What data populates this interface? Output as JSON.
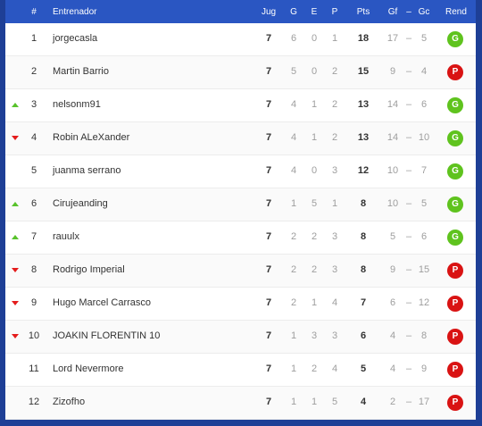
{
  "columns": {
    "pos": "#",
    "coach": "Entrenador",
    "played": "Jug",
    "won": "G",
    "drawn": "E",
    "lost": "P",
    "points": "Pts",
    "goals_for": "Gf",
    "separator": "–",
    "goals_against": "Gc",
    "form": "Rend"
  },
  "colors": {
    "header_bg": "#2a56c2",
    "page_bg": "#1e3f96",
    "win_badge": "#5fc31e",
    "loss_badge": "#d91313",
    "trend_up": "#58c22b",
    "trend_down": "#e41c1c"
  },
  "rows": [
    {
      "trend": "none",
      "pos": "1",
      "name": "jorgecasla",
      "jug": "7",
      "g": "6",
      "e": "0",
      "p": "1",
      "pts": "18",
      "gf": "17",
      "dash": "–",
      "gc": "5",
      "rend": "G",
      "rend_type": "win"
    },
    {
      "trend": "none",
      "pos": "2",
      "name": "Martin Barrio",
      "jug": "7",
      "g": "5",
      "e": "0",
      "p": "2",
      "pts": "15",
      "gf": "9",
      "dash": "–",
      "gc": "4",
      "rend": "P",
      "rend_type": "loss"
    },
    {
      "trend": "up",
      "pos": "3",
      "name": "nelsonm91",
      "jug": "7",
      "g": "4",
      "e": "1",
      "p": "2",
      "pts": "13",
      "gf": "14",
      "dash": "–",
      "gc": "6",
      "rend": "G",
      "rend_type": "win"
    },
    {
      "trend": "down",
      "pos": "4",
      "name": "Robin ALeXander",
      "jug": "7",
      "g": "4",
      "e": "1",
      "p": "2",
      "pts": "13",
      "gf": "14",
      "dash": "–",
      "gc": "10",
      "rend": "G",
      "rend_type": "win"
    },
    {
      "trend": "none",
      "pos": "5",
      "name": "juanma serrano",
      "jug": "7",
      "g": "4",
      "e": "0",
      "p": "3",
      "pts": "12",
      "gf": "10",
      "dash": "–",
      "gc": "7",
      "rend": "G",
      "rend_type": "win"
    },
    {
      "trend": "up",
      "pos": "6",
      "name": "Cirujeanding",
      "jug": "7",
      "g": "1",
      "e": "5",
      "p": "1",
      "pts": "8",
      "gf": "10",
      "dash": "–",
      "gc": "5",
      "rend": "G",
      "rend_type": "win"
    },
    {
      "trend": "up",
      "pos": "7",
      "name": "rauulx",
      "jug": "7",
      "g": "2",
      "e": "2",
      "p": "3",
      "pts": "8",
      "gf": "5",
      "dash": "–",
      "gc": "6",
      "rend": "G",
      "rend_type": "win"
    },
    {
      "trend": "down",
      "pos": "8",
      "name": "Rodrigo Imperial",
      "jug": "7",
      "g": "2",
      "e": "2",
      "p": "3",
      "pts": "8",
      "gf": "9",
      "dash": "–",
      "gc": "15",
      "rend": "P",
      "rend_type": "loss"
    },
    {
      "trend": "down",
      "pos": "9",
      "name": "Hugo Marcel Carrasco",
      "jug": "7",
      "g": "2",
      "e": "1",
      "p": "4",
      "pts": "7",
      "gf": "6",
      "dash": "–",
      "gc": "12",
      "rend": "P",
      "rend_type": "loss"
    },
    {
      "trend": "down",
      "pos": "10",
      "name": "JOAKIN FLORENTIN 10",
      "jug": "7",
      "g": "1",
      "e": "3",
      "p": "3",
      "pts": "6",
      "gf": "4",
      "dash": "–",
      "gc": "8",
      "rend": "P",
      "rend_type": "loss"
    },
    {
      "trend": "none",
      "pos": "11",
      "name": "Lord Nevermore",
      "jug": "7",
      "g": "1",
      "e": "2",
      "p": "4",
      "pts": "5",
      "gf": "4",
      "dash": "–",
      "gc": "9",
      "rend": "P",
      "rend_type": "loss"
    },
    {
      "trend": "none",
      "pos": "12",
      "name": "Zizofho",
      "jug": "7",
      "g": "1",
      "e": "1",
      "p": "5",
      "pts": "4",
      "gf": "2",
      "dash": "–",
      "gc": "17",
      "rend": "P",
      "rend_type": "loss"
    }
  ]
}
